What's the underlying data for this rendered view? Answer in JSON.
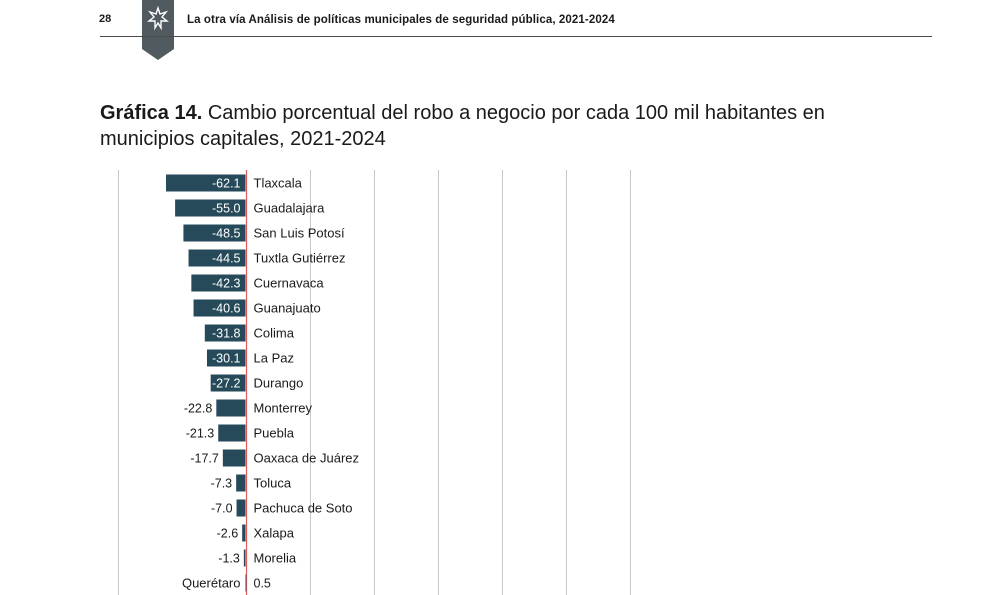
{
  "header": {
    "page_number": "28",
    "running_title": "La otra vía Análisis de políticas municipales de seguridad pública, 2021-2024",
    "accent_color": "#505a5f"
  },
  "chart_title": {
    "number": "Gráfica 14.",
    "text": "Cambio porcentual del robo a negocio por cada 100 mil habitantes en municipios capitales, 2021-2024"
  },
  "chart_data": {
    "type": "bar",
    "orientation": "horizontal",
    "bar_color": "#264a5a",
    "categories": [
      "Tlaxcala",
      "Guadalajara",
      "San Luis Potosí",
      "Tuxtla Gutiérrez",
      "Cuernavaca",
      "Guanajuato",
      "Colima",
      "La Paz",
      "Durango",
      "Monterrey",
      "Puebla",
      "Oaxaca de Juárez",
      "Toluca",
      "Pachuca de Soto",
      "Xalapa",
      "Morelia",
      "Querétaro"
    ],
    "values": [
      -62.1,
      -55.0,
      -48.5,
      -44.5,
      -42.3,
      -40.6,
      -31.8,
      -30.1,
      -27.2,
      -22.8,
      -21.3,
      -17.7,
      -7.3,
      -7.0,
      -2.6,
      -1.3,
      0.5
    ],
    "value_labels": [
      "-62.1",
      "-55.0",
      "-48.5",
      "-44.5",
      "-42.3",
      "-40.6",
      "-31.8",
      "-30.1",
      "-27.2",
      "-22.8",
      "-21.3",
      "-17.7",
      "-7.3",
      "-7.0",
      "-2.6",
      "-1.3",
      "0.5"
    ],
    "xlim": [
      -100,
      300
    ],
    "gridlines_x": [
      -100,
      0,
      50,
      100,
      150,
      200,
      250,
      300
    ],
    "grid": true
  }
}
